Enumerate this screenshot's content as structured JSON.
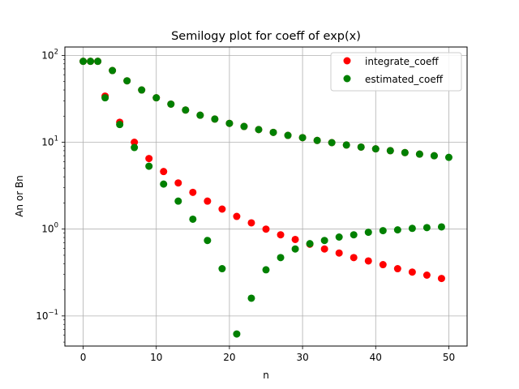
{
  "chart_data": {
    "type": "scatter",
    "title": "Semilogy plot for coeff of exp(x)",
    "xlabel": "n",
    "ylabel": "An or Bn",
    "xscale": "linear",
    "yscale": "log",
    "xlim": [
      -2.5,
      52.5
    ],
    "ylim": [
      0.045,
      125
    ],
    "grid": true,
    "legend_position": "top-right",
    "x_ticks": [
      0,
      10,
      20,
      30,
      40,
      50
    ],
    "x_tick_labels": [
      "0",
      "10",
      "20",
      "30",
      "40",
      "50"
    ],
    "y_ticks": [
      0.1,
      1,
      10,
      100
    ],
    "y_tick_labels": [
      "10^-1",
      "10^0",
      "10^1",
      "10^2"
    ],
    "series": [
      {
        "name": "integrate_coeff",
        "color": "#ff0000",
        "x": [
          0,
          1,
          2,
          3,
          4,
          5,
          6,
          7,
          8,
          9,
          10,
          11,
          12,
          13,
          14,
          15,
          16,
          17,
          18,
          19,
          20,
          21,
          22,
          23,
          24,
          25,
          26,
          27,
          28,
          29,
          30,
          31,
          32,
          33,
          34,
          35,
          36,
          37,
          38,
          39,
          40,
          41,
          42,
          43,
          44,
          45,
          46,
          47,
          48,
          49
        ],
        "y": [
          85.5,
          85.5,
          85.5,
          34,
          67,
          17,
          51,
          10,
          40,
          6.5,
          32.5,
          4.6,
          27.5,
          3.4,
          23.5,
          2.65,
          20.5,
          2.1,
          18.5,
          1.7,
          16.5,
          1.4,
          15.2,
          1.18,
          14,
          1,
          13,
          0.86,
          12,
          0.76,
          11.3,
          0.67,
          10.5,
          0.59,
          9.9,
          0.53,
          9.3,
          0.47,
          8.8,
          0.43,
          8.4,
          0.39,
          8,
          0.35,
          7.6,
          0.32,
          7.3,
          0.295,
          7,
          0.27
        ]
      },
      {
        "name": "estimated_coeff",
        "color": "#008000",
        "x": [
          0,
          1,
          2,
          3,
          4,
          5,
          6,
          7,
          8,
          9,
          10,
          11,
          12,
          13,
          14,
          15,
          16,
          17,
          18,
          19,
          20,
          21,
          22,
          23,
          24,
          25,
          26,
          27,
          28,
          29,
          30,
          31,
          32,
          33,
          34,
          35,
          36,
          37,
          38,
          39,
          40,
          41,
          42,
          43,
          44,
          45,
          46,
          47,
          48,
          49,
          50
        ],
        "y": [
          85.5,
          85.5,
          85.5,
          32.5,
          67,
          16,
          51,
          8.7,
          40,
          5.3,
          32.5,
          3.3,
          27.5,
          2.1,
          23.5,
          1.3,
          20.5,
          0.74,
          18.5,
          0.35,
          16.5,
          0.062,
          15.2,
          0.16,
          14,
          0.34,
          13,
          0.47,
          12,
          0.59,
          11.3,
          0.68,
          10.5,
          0.74,
          9.9,
          0.81,
          9.3,
          0.86,
          8.8,
          0.92,
          8.4,
          0.96,
          8,
          0.98,
          7.6,
          1.02,
          7.3,
          1.04,
          7,
          1.06,
          6.7
        ]
      }
    ]
  }
}
